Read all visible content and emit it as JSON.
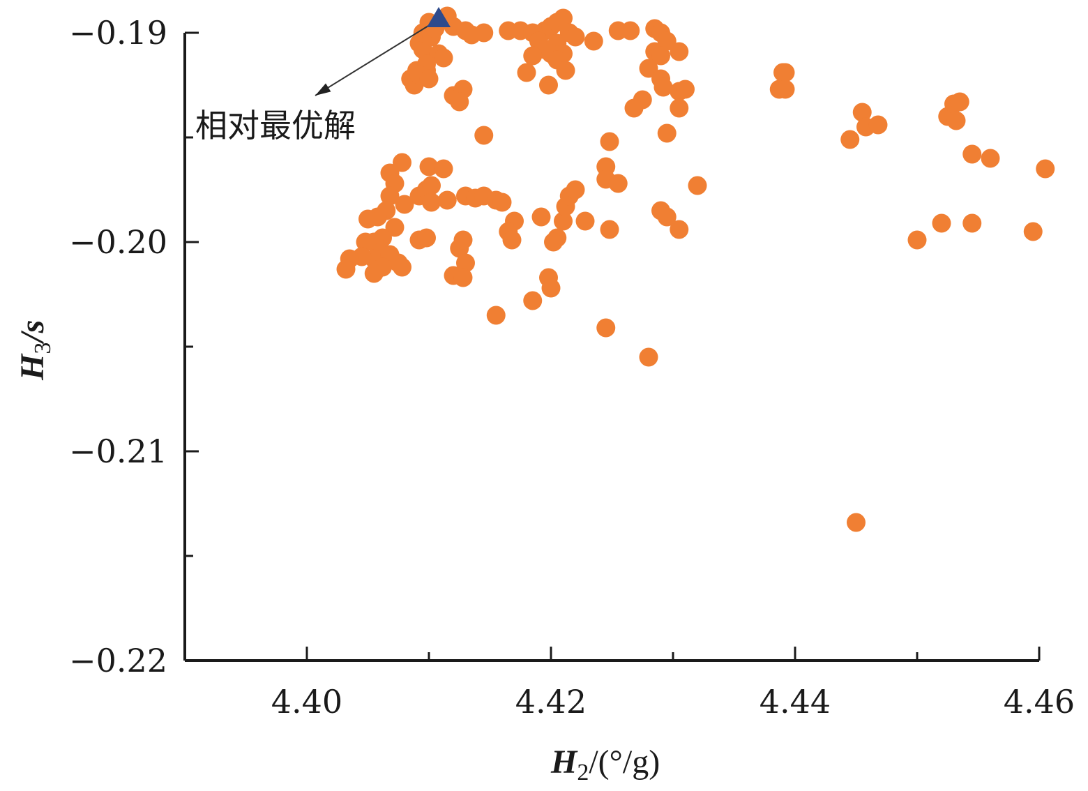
{
  "chart_data": {
    "type": "scatter",
    "xlabel": {
      "var": "H",
      "sub": "2",
      "unit": "/(°/g)"
    },
    "ylabel": {
      "var": "H",
      "sub": "3",
      "unit": "/s"
    },
    "xlim": [
      4.39,
      4.46
    ],
    "ylim": [
      -0.22,
      -0.19
    ],
    "x_ticks": [
      4.4,
      4.42,
      4.44,
      4.46
    ],
    "x_tick_labels": [
      "4.40",
      "4.42",
      "4.44",
      "4.46"
    ],
    "y_ticks": [
      -0.19,
      -0.2,
      -0.21,
      -0.22
    ],
    "y_tick_labels": [
      "−0.19",
      "−0.20",
      "−0.21",
      "−0.22"
    ],
    "grid": false,
    "colors": {
      "points": "#f07f33",
      "optimum": "#2e4a8c",
      "axis": "#1a1a1a"
    },
    "annotation": {
      "text": "相对最优解",
      "target": [
        4.4108,
        -0.1893
      ]
    },
    "optimum": {
      "x": 4.4108,
      "y": -0.1893
    },
    "series": [
      {
        "points": [
          [
            4.4098,
            -0.1918
          ],
          [
            4.409,
            -0.1918
          ],
          [
            4.4092,
            -0.1905
          ],
          [
            4.4095,
            -0.1908
          ],
          [
            4.41,
            -0.1895
          ],
          [
            4.4095,
            -0.19
          ],
          [
            4.4102,
            -0.1902
          ],
          [
            4.4105,
            -0.1898
          ],
          [
            4.4108,
            -0.191
          ],
          [
            4.4112,
            -0.1912
          ],
          [
            4.4098,
            -0.1915
          ],
          [
            4.4085,
            -0.1922
          ],
          [
            4.4088,
            -0.1925
          ],
          [
            4.4092,
            -0.192
          ],
          [
            4.41,
            -0.1922
          ],
          [
            4.4115,
            -0.1892
          ],
          [
            4.412,
            -0.1897
          ],
          [
            4.413,
            -0.1899
          ],
          [
            4.4145,
            -0.19
          ],
          [
            4.4135,
            -0.1901
          ],
          [
            4.412,
            -0.193
          ],
          [
            4.4128,
            -0.1927
          ],
          [
            4.4125,
            -0.1933
          ],
          [
            4.4165,
            -0.1899
          ],
          [
            4.4175,
            -0.1899
          ],
          [
            4.4185,
            -0.19
          ],
          [
            4.4195,
            -0.1899
          ],
          [
            4.42,
            -0.1897
          ],
          [
            4.4205,
            -0.1895
          ],
          [
            4.421,
            -0.1893
          ],
          [
            4.4215,
            -0.19
          ],
          [
            4.422,
            -0.1902
          ],
          [
            4.419,
            -0.1904
          ],
          [
            4.4205,
            -0.1905
          ],
          [
            4.42,
            -0.191
          ],
          [
            4.421,
            -0.191
          ],
          [
            4.4195,
            -0.1908
          ],
          [
            4.4185,
            -0.1911
          ],
          [
            4.4205,
            -0.1913
          ],
          [
            4.4212,
            -0.1918
          ],
          [
            4.418,
            -0.1919
          ],
          [
            4.4198,
            -0.1925
          ],
          [
            4.4235,
            -0.1904
          ],
          [
            4.4255,
            -0.1899
          ],
          [
            4.4265,
            -0.1899
          ],
          [
            4.4145,
            -0.1949
          ],
          [
            4.4285,
            -0.1898
          ],
          [
            4.429,
            -0.19
          ],
          [
            4.4295,
            -0.1904
          ],
          [
            4.4285,
            -0.1909
          ],
          [
            4.429,
            -0.1911
          ],
          [
            4.4305,
            -0.1909
          ],
          [
            4.428,
            -0.1917
          ],
          [
            4.429,
            -0.1922
          ],
          [
            4.4292,
            -0.1926
          ],
          [
            4.4305,
            -0.1928
          ],
          [
            4.431,
            -0.1927
          ],
          [
            4.4275,
            -0.1932
          ],
          [
            4.4268,
            -0.1936
          ],
          [
            4.4305,
            -0.1936
          ],
          [
            4.4295,
            -0.1948
          ],
          [
            4.439,
            -0.1919
          ],
          [
            4.4392,
            -0.1919
          ],
          [
            4.4387,
            -0.1927
          ],
          [
            4.4392,
            -0.1927
          ],
          [
            4.4455,
            -0.1938
          ],
          [
            4.4458,
            -0.1945
          ],
          [
            4.4468,
            -0.1944
          ],
          [
            4.4445,
            -0.1951
          ],
          [
            4.4525,
            -0.194
          ],
          [
            4.453,
            -0.1934
          ],
          [
            4.4535,
            -0.1933
          ],
          [
            4.4532,
            -0.1942
          ],
          [
            4.4545,
            -0.1958
          ],
          [
            4.456,
            -0.196
          ],
          [
            4.4605,
            -0.1965
          ],
          [
            4.4068,
            -0.1967
          ],
          [
            4.4078,
            -0.1962
          ],
          [
            4.41,
            -0.1964
          ],
          [
            4.4112,
            -0.1965
          ],
          [
            4.4072,
            -0.1972
          ],
          [
            4.4068,
            -0.1978
          ],
          [
            4.408,
            -0.1982
          ],
          [
            4.4092,
            -0.1978
          ],
          [
            4.4098,
            -0.1975
          ],
          [
            4.4102,
            -0.1973
          ],
          [
            4.4102,
            -0.1981
          ],
          [
            4.4115,
            -0.198
          ],
          [
            4.4065,
            -0.1985
          ],
          [
            4.4058,
            -0.1988
          ],
          [
            4.405,
            -0.1989
          ],
          [
            4.4072,
            -0.1993
          ],
          [
            4.4062,
            -0.1998
          ],
          [
            4.4055,
            -0.2
          ],
          [
            4.4048,
            -0.2
          ],
          [
            4.406,
            -0.2005
          ],
          [
            4.4055,
            -0.2008
          ],
          [
            4.4045,
            -0.2007
          ],
          [
            4.4035,
            -0.2008
          ],
          [
            4.4032,
            -0.2013
          ],
          [
            4.4068,
            -0.2006
          ],
          [
            4.4075,
            -0.201
          ],
          [
            4.4078,
            -0.2012
          ],
          [
            4.4062,
            -0.2012
          ],
          [
            4.4055,
            -0.2015
          ],
          [
            4.4092,
            -0.1999
          ],
          [
            4.4098,
            -0.1998
          ],
          [
            4.413,
            -0.1978
          ],
          [
            4.4138,
            -0.1979
          ],
          [
            4.4145,
            -0.1978
          ],
          [
            4.4155,
            -0.198
          ],
          [
            4.416,
            -0.1981
          ],
          [
            4.417,
            -0.199
          ],
          [
            4.4165,
            -0.1995
          ],
          [
            4.4168,
            -0.1999
          ],
          [
            4.4192,
            -0.1988
          ],
          [
            4.412,
            -0.2016
          ],
          [
            4.4125,
            -0.2003
          ],
          [
            4.4128,
            -0.1999
          ],
          [
            4.413,
            -0.201
          ],
          [
            4.4128,
            -0.2017
          ],
          [
            4.4155,
            -0.2035
          ],
          [
            4.4185,
            -0.2028
          ],
          [
            4.4198,
            -0.2017
          ],
          [
            4.42,
            -0.2022
          ],
          [
            4.4205,
            -0.1998
          ],
          [
            4.4202,
            -0.2
          ],
          [
            4.421,
            -0.199
          ],
          [
            4.4212,
            -0.1983
          ],
          [
            4.4215,
            -0.1978
          ],
          [
            4.422,
            -0.1975
          ],
          [
            4.4228,
            -0.199
          ],
          [
            4.4248,
            -0.1952
          ],
          [
            4.4245,
            -0.1964
          ],
          [
            4.4245,
            -0.197
          ],
          [
            4.4255,
            -0.1972
          ],
          [
            4.4248,
            -0.1994
          ],
          [
            4.4245,
            -0.2041
          ],
          [
            4.428,
            -0.2055
          ],
          [
            4.429,
            -0.1985
          ],
          [
            4.4295,
            -0.1988
          ],
          [
            4.4305,
            -0.1994
          ],
          [
            4.432,
            -0.1973
          ],
          [
            4.45,
            -0.1999
          ],
          [
            4.452,
            -0.1991
          ],
          [
            4.4545,
            -0.1991
          ],
          [
            4.4595,
            -0.1995
          ],
          [
            4.445,
            -0.2134
          ]
        ]
      }
    ]
  }
}
